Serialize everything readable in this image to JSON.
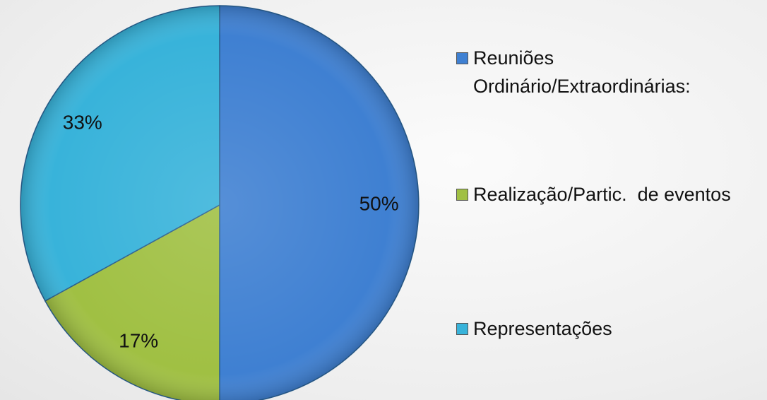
{
  "chart_data": {
    "type": "pie",
    "categories": [
      "Reuniões Ordinário/Extraordinárias:",
      "Realização/Partic.  de eventos",
      "Representações"
    ],
    "values": [
      50,
      17,
      33
    ],
    "value_labels": [
      "50%",
      "17%",
      "33%"
    ],
    "colors": [
      "#3f80d2",
      "#a0c043",
      "#38b3da"
    ],
    "legend": "right"
  }
}
